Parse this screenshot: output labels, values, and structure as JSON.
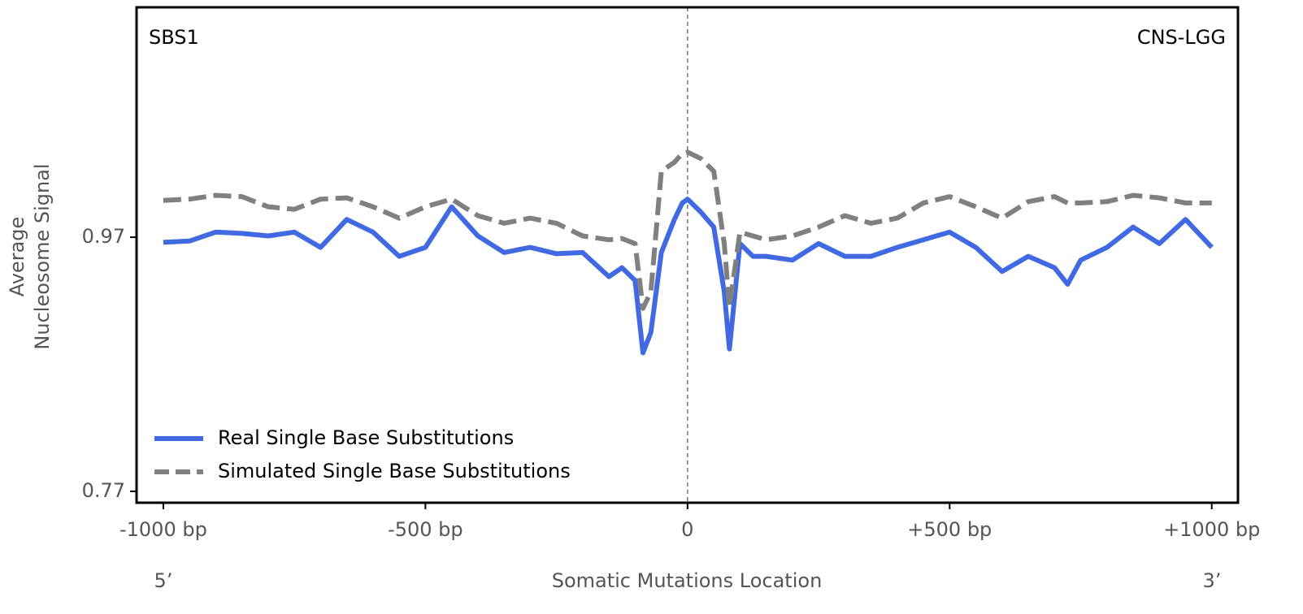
{
  "chart_data": {
    "type": "line",
    "label_left": "SBS1",
    "label_right": "CNS-LGG",
    "xlabel": "Somatic Mutations Location",
    "ylabel": [
      "Average",
      "Nucleosome Signal"
    ],
    "end_left": "5’",
    "end_right": "3’",
    "x": [
      -1000,
      -950,
      -900,
      -850,
      -800,
      -750,
      -700,
      -650,
      -600,
      -550,
      -500,
      -450,
      -400,
      -350,
      -300,
      -250,
      -200,
      -150,
      -125,
      -100,
      -85,
      -70,
      -50,
      -25,
      -10,
      0,
      25,
      50,
      70,
      80,
      100,
      125,
      150,
      200,
      250,
      300,
      350,
      400,
      450,
      500,
      550,
      600,
      650,
      700,
      725,
      750,
      800,
      850,
      900,
      950,
      1000
    ],
    "series": [
      {
        "name": "Real Single Base Substitutions",
        "color": "#4169e1",
        "dashed": false,
        "values": [
          0.966,
          0.967,
          0.974,
          0.973,
          0.971,
          0.974,
          0.962,
          0.984,
          0.974,
          0.955,
          0.962,
          0.994,
          0.971,
          0.958,
          0.962,
          0.957,
          0.958,
          0.939,
          0.946,
          0.936,
          0.879,
          0.895,
          0.958,
          0.984,
          0.997,
          1.0,
          0.99,
          0.978,
          0.927,
          0.882,
          0.965,
          0.955,
          0.955,
          0.952,
          0.965,
          0.955,
          0.955,
          0.962,
          0.968,
          0.974,
          0.962,
          0.943,
          0.955,
          0.946,
          0.933,
          0.952,
          0.962,
          0.978,
          0.965,
          0.984,
          0.962
        ]
      },
      {
        "name": "Simulated Single Base Substitutions",
        "color": "#808080",
        "dashed": true,
        "values": [
          0.999,
          1.0,
          1.003,
          1.002,
          0.994,
          0.992,
          1.0,
          1.001,
          0.994,
          0.985,
          0.994,
          1.0,
          0.987,
          0.981,
          0.985,
          0.981,
          0.971,
          0.968,
          0.969,
          0.965,
          0.914,
          0.927,
          1.022,
          1.029,
          1.036,
          1.037,
          1.032,
          1.022,
          0.965,
          0.915,
          0.974,
          0.971,
          0.968,
          0.971,
          0.978,
          0.987,
          0.981,
          0.985,
          0.997,
          1.002,
          0.994,
          0.985,
          0.998,
          1.002,
          0.997,
          0.997,
          0.998,
          1.003,
          1.001,
          0.997,
          0.997
        ]
      }
    ],
    "xlim": [
      -1051,
      1050
    ],
    "ylim": [
      0.761,
      1.151
    ],
    "xticks": [
      {
        "value": -1000,
        "label": "-1000 bp"
      },
      {
        "value": -500,
        "label": "-500 bp"
      },
      0,
      {
        "value": 500,
        "label": "+500 bp"
      },
      {
        "value": 1000,
        "label": "+1000 bp"
      }
    ],
    "yticks": [
      0.77,
      0.97
    ],
    "vline": 0,
    "legend": "lower-left",
    "grid": false
  }
}
